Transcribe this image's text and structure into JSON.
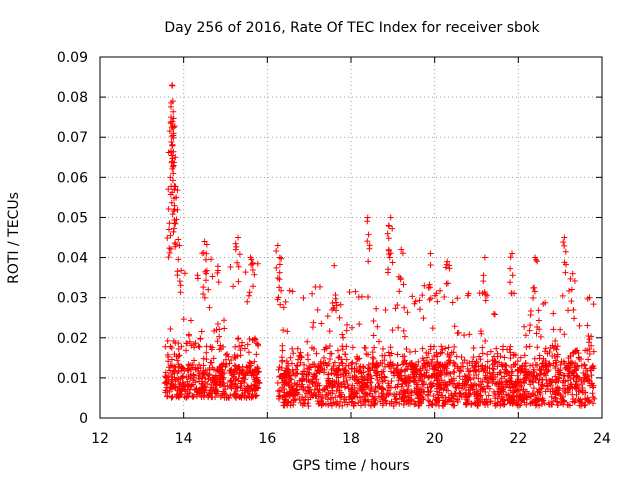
{
  "chart_data": {
    "type": "scatter",
    "title": "Day 256 of 2016, Rate Of TEC Index for receiver sbok",
    "xlabel": "GPS time / hours",
    "ylabel": "ROTI / TECUs",
    "xlim": [
      12,
      24
    ],
    "ylim": [
      0,
      0.09
    ],
    "xticks": [
      12,
      14,
      16,
      18,
      20,
      22,
      24
    ],
    "xtick_labels": [
      "12",
      "14",
      "16",
      "18",
      "20",
      "22",
      "24"
    ],
    "yticks": [
      0,
      0.01,
      0.02,
      0.03,
      0.04,
      0.05,
      0.06,
      0.07,
      0.08,
      0.09
    ],
    "ytick_labels": [
      "0",
      "0.01",
      "0.02",
      "0.03",
      "0.04",
      "0.05",
      "0.06",
      "0.07",
      "0.08",
      "0.09"
    ],
    "grid": true,
    "marker": "+",
    "marker_color": "#ff0000",
    "series": [
      {
        "name": "ROTI",
        "color": "#ff0000",
        "segments": [
          {
            "x_start": 13.55,
            "x_end": 15.82,
            "baseline": [
              0.005,
              0.012
            ],
            "peaks": [
              {
                "x": 13.72,
                "y": 0.083
              },
              {
                "x": 13.74,
                "y": 0.079
              },
              {
                "x": 13.7,
                "y": 0.075
              },
              {
                "x": 13.76,
                "y": 0.071
              },
              {
                "x": 13.73,
                "y": 0.068
              },
              {
                "x": 13.8,
                "y": 0.065
              },
              {
                "x": 13.75,
                "y": 0.061
              },
              {
                "x": 13.68,
                "y": 0.06
              },
              {
                "x": 13.82,
                "y": 0.055
              },
              {
                "x": 13.78,
                "y": 0.052
              },
              {
                "x": 13.65,
                "y": 0.047
              },
              {
                "x": 13.9,
                "y": 0.043
              },
              {
                "x": 14.5,
                "y": 0.044
              },
              {
                "x": 15.3,
                "y": 0.045
              },
              {
                "x": 15.6,
                "y": 0.04
              }
            ],
            "envelope": 0.035
          },
          {
            "x_start": 16.25,
            "x_end": 23.82,
            "baseline": [
              0.003,
              0.012
            ],
            "peaks": [
              {
                "x": 16.25,
                "y": 0.043
              },
              {
                "x": 16.3,
                "y": 0.04
              },
              {
                "x": 17.6,
                "y": 0.038
              },
              {
                "x": 18.4,
                "y": 0.05
              },
              {
                "x": 18.95,
                "y": 0.05
              },
              {
                "x": 18.9,
                "y": 0.048
              },
              {
                "x": 19.2,
                "y": 0.042
              },
              {
                "x": 19.9,
                "y": 0.041
              },
              {
                "x": 20.3,
                "y": 0.039
              },
              {
                "x": 21.2,
                "y": 0.04
              },
              {
                "x": 21.85,
                "y": 0.041
              },
              {
                "x": 22.4,
                "y": 0.04
              },
              {
                "x": 23.1,
                "y": 0.045
              },
              {
                "x": 23.3,
                "y": 0.036
              },
              {
                "x": 23.7,
                "y": 0.03
              }
            ],
            "envelope": 0.03
          }
        ]
      }
    ]
  }
}
